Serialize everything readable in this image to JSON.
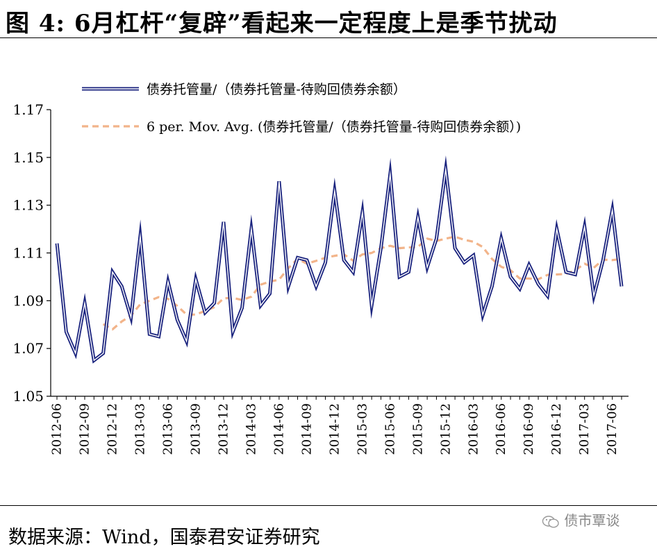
{
  "title": "图 4:  6月杠杆“复辟”看起来一定程度上是季节扰动",
  "source": "数据来源：Wind，国泰君安证券研究",
  "watermark": "债市覃谈",
  "chart_data": {
    "type": "line",
    "title": "",
    "xlabel": "",
    "ylabel": "",
    "ylim": [
      1.05,
      1.17
    ],
    "yticks": [
      "1.05",
      "1.07",
      "1.09",
      "1.11",
      "1.13",
      "1.15",
      "1.17"
    ],
    "x": [
      "2012-06",
      "2012-07",
      "2012-08",
      "2012-09",
      "2012-10",
      "2012-11",
      "2012-12",
      "2013-01",
      "2013-02",
      "2013-03",
      "2013-04",
      "2013-05",
      "2013-06",
      "2013-07",
      "2013-08",
      "2013-09",
      "2013-10",
      "2013-11",
      "2013-12",
      "2014-01",
      "2014-02",
      "2014-03",
      "2014-04",
      "2014-05",
      "2014-06",
      "2014-07",
      "2014-08",
      "2014-09",
      "2014-10",
      "2014-11",
      "2014-12",
      "2015-01",
      "2015-02",
      "2015-03",
      "2015-04",
      "2015-05",
      "2015-06",
      "2015-07",
      "2015-08",
      "2015-09",
      "2015-10",
      "2015-11",
      "2015-12",
      "2016-01",
      "2016-02",
      "2016-03",
      "2016-04",
      "2016-05",
      "2016-06",
      "2016-07",
      "2016-08",
      "2016-09",
      "2016-10",
      "2016-11",
      "2016-12",
      "2017-01",
      "2017-02",
      "2017-03",
      "2017-04",
      "2017-05",
      "2017-06",
      "2017-07"
    ],
    "xtick_labels": [
      "2012-06",
      "2012-09",
      "2012-12",
      "2013-03",
      "2013-06",
      "2013-09",
      "2013-12",
      "2014-03",
      "2014-06",
      "2014-09",
      "2014-12",
      "2015-03",
      "2015-06",
      "2015-09",
      "2015-12",
      "2016-03",
      "2016-06",
      "2016-09",
      "2016-12",
      "2017-03",
      "2017-06"
    ],
    "grid": false,
    "legend_position": "top",
    "series": [
      {
        "name": "债券托管量/（债券托管量-待购回债券余额）",
        "color": "#1a237e",
        "style": "double-line",
        "values": [
          1.114,
          1.077,
          1.068,
          1.089,
          1.065,
          1.068,
          1.102,
          1.096,
          1.083,
          1.117,
          1.076,
          1.075,
          1.098,
          1.082,
          1.073,
          1.099,
          1.085,
          1.089,
          1.123,
          1.077,
          1.087,
          1.12,
          1.088,
          1.093,
          1.14,
          1.096,
          1.108,
          1.107,
          1.096,
          1.106,
          1.136,
          1.107,
          1.102,
          1.127,
          1.088,
          1.112,
          1.143,
          1.1,
          1.102,
          1.125,
          1.104,
          1.116,
          1.145,
          1.112,
          1.106,
          1.109,
          1.084,
          1.096,
          1.116,
          1.1,
          1.095,
          1.105,
          1.097,
          1.092,
          1.12,
          1.102,
          1.101,
          1.121,
          1.092,
          1.107,
          1.128,
          1.096
        ]
      },
      {
        "name": "6 per. Mov. Avg. (债券托管量/（债券托管量-待购回债券余额）)",
        "color": "#f2b48a",
        "style": "dashed",
        "values": [
          null,
          null,
          null,
          null,
          null,
          1.0802,
          1.078,
          1.0813,
          1.0838,
          1.0885,
          1.09,
          1.0915,
          1.0908,
          1.0878,
          1.0842,
          1.0842,
          1.0857,
          1.0873,
          1.091,
          1.0912,
          1.0903,
          1.0917,
          1.0967,
          1.098,
          1.0988,
          1.1037,
          1.1075,
          1.1055,
          1.1067,
          1.108,
          1.1088,
          1.1094,
          1.1068,
          1.1094,
          1.11,
          1.112,
          1.113,
          1.112,
          1.1123,
          1.1125,
          1.116,
          1.115,
          1.116,
          1.1168,
          1.1155,
          1.1147,
          1.1125,
          1.1075,
          1.1042,
          1.1028,
          1.0993,
          1.0993,
          1.099,
          1.1008,
          1.101,
          1.1012,
          1.1028,
          1.1055,
          1.1038,
          1.1072,
          1.107,
          1.1075
        ]
      }
    ]
  }
}
